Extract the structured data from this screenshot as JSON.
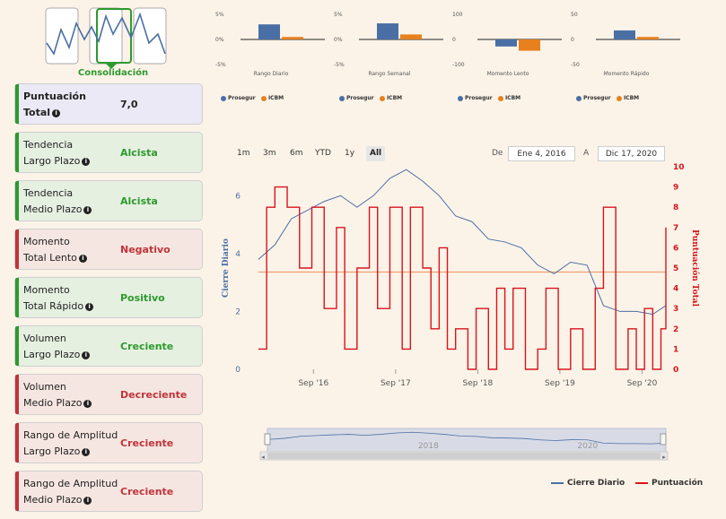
{
  "thumbnail": {
    "title": "Consolidación",
    "icon": "line-chart-thumbnail-icon"
  },
  "cards": [
    {
      "line1": "Puntuación",
      "line2": "Total",
      "value": "7,0",
      "style": "score"
    },
    {
      "line1": "Tendencia",
      "line2": "Largo Plazo",
      "value": "Alcista",
      "style": "pos"
    },
    {
      "line1": "Tendencia",
      "line2": "Medio Plazo",
      "value": "Alcista",
      "style": "pos"
    },
    {
      "line1": "Momento",
      "line2": "Total Lento",
      "value": "Negativo",
      "style": "neg"
    },
    {
      "line1": "Momento",
      "line2": "Total Rápido",
      "value": "Positivo",
      "style": "pos"
    },
    {
      "line1": "Volumen",
      "line2": "Largo Plazo",
      "value": "Creciente",
      "style": "pos"
    },
    {
      "line1": "Volumen",
      "line2": "Medio Plazo",
      "value": "Decreciente",
      "style": "neg"
    },
    {
      "line1": "Rango de Amplitud",
      "line2": "Largo Plazo",
      "value": "Creciente",
      "style": "neg"
    },
    {
      "line1": "Rango de Amplitud",
      "line2": "Medio Plazo",
      "value": "Creciente",
      "style": "neg"
    }
  ],
  "colors": {
    "prosegur": "#4a6fa5",
    "icbm": "#e8801e",
    "cierre": "#4a6fa5",
    "puntuacion": "#d8141c",
    "positive": "#2e9a2e",
    "negative": "#c0343a"
  },
  "range": {
    "buttons": [
      "1m",
      "3m",
      "6m",
      "YTD",
      "1y",
      "All"
    ],
    "active": "All",
    "from_label": "De",
    "from": "Ene 4, 2016",
    "to_label": "A",
    "to": "Dic 17, 2020"
  },
  "legend": {
    "cierre": "Cierre Diario",
    "puntuacion": "Puntuación"
  },
  "chart_data": [
    {
      "type": "bar",
      "title": "Rango Diario",
      "categories": [
        "Prosegur",
        "ICBM"
      ],
      "values": [
        3,
        0.5
      ],
      "ylim": [
        -5,
        5
      ],
      "yticks": [
        "5%",
        "0%",
        "-5%"
      ]
    },
    {
      "type": "bar",
      "title": "Rango Semanal",
      "categories": [
        "Prosegur",
        "ICBM"
      ],
      "values": [
        3.2,
        1.0
      ],
      "ylim": [
        -5,
        5
      ],
      "yticks": [
        "5%",
        "0%",
        "-5%"
      ]
    },
    {
      "type": "bar",
      "title": "Momento Lento",
      "categories": [
        "Prosegur",
        "ICBM"
      ],
      "values": [
        -28,
        -45
      ],
      "ylim": [
        -100,
        100
      ],
      "yticks": [
        "100",
        "0",
        "-100"
      ]
    },
    {
      "type": "bar",
      "title": "Momento Rápido",
      "categories": [
        "Prosegur",
        "ICBM"
      ],
      "values": [
        18,
        5
      ],
      "ylim": [
        -50,
        50
      ],
      "yticks": [
        "50",
        "0",
        "-50"
      ]
    },
    {
      "type": "line",
      "xlabels": [
        "Sep '16",
        "Sep '17",
        "Sep '18",
        "Sep '19",
        "Sep '20"
      ],
      "ylabel": "Cierre Diario",
      "y2label": "Puntuación Total",
      "ylim": [
        0,
        7
      ],
      "yticks": [
        0,
        2,
        4,
        6
      ],
      "y2lim": [
        0,
        10
      ],
      "y2ticks": [
        0,
        1,
        2,
        3,
        4,
        5,
        6,
        7,
        8,
        9,
        10
      ],
      "reference_y2": 4.8,
      "series": [
        {
          "name": "Cierre Diario",
          "axis": "left",
          "x": [
            2016.0,
            2016.2,
            2016.4,
            2016.6,
            2016.8,
            2017.0,
            2017.2,
            2017.4,
            2017.6,
            2017.8,
            2018.0,
            2018.2,
            2018.4,
            2018.6,
            2018.8,
            2019.0,
            2019.2,
            2019.4,
            2019.6,
            2019.8,
            2020.0,
            2020.2,
            2020.4,
            2020.6,
            2020.8,
            2020.96
          ],
          "y": [
            3.8,
            4.3,
            5.2,
            5.5,
            5.8,
            6.0,
            5.6,
            6.0,
            6.6,
            6.9,
            6.5,
            6.0,
            5.3,
            5.1,
            4.5,
            4.4,
            4.2,
            3.6,
            3.3,
            3.7,
            3.6,
            2.2,
            2.0,
            2.0,
            1.9,
            2.2
          ]
        },
        {
          "name": "Puntuación",
          "axis": "right",
          "step": true,
          "x": [
            2016.0,
            2016.1,
            2016.2,
            2016.35,
            2016.5,
            2016.65,
            2016.8,
            2016.95,
            2017.05,
            2017.2,
            2017.35,
            2017.45,
            2017.6,
            2017.75,
            2017.85,
            2018.0,
            2018.1,
            2018.2,
            2018.3,
            2018.4,
            2018.55,
            2018.65,
            2018.8,
            2018.9,
            2019.0,
            2019.1,
            2019.25,
            2019.4,
            2019.5,
            2019.65,
            2019.8,
            2019.95,
            2020.1,
            2020.2,
            2020.35,
            2020.5,
            2020.6,
            2020.7,
            2020.8,
            2020.9,
            2020.96
          ],
          "y": [
            1,
            8,
            9,
            8,
            5,
            8,
            3,
            7,
            1,
            5,
            8,
            3,
            8,
            1,
            8,
            5,
            2,
            6,
            1,
            2,
            0,
            3,
            0,
            4,
            1,
            4,
            0,
            1,
            4,
            0,
            2,
            0,
            4,
            8,
            0,
            2,
            0,
            3,
            0,
            2,
            7
          ]
        }
      ]
    }
  ]
}
